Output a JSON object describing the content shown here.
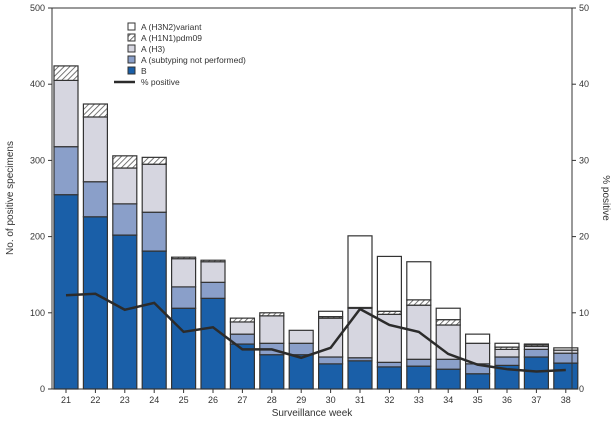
{
  "chart_data": {
    "type": "bar",
    "stacked": true,
    "xlabel": "Surveillance week",
    "ylabel": "No. of positive specimens",
    "y2label": "% positive",
    "ylim": [
      0,
      500
    ],
    "y2lim": [
      0,
      50
    ],
    "yticks": [
      0,
      100,
      200,
      300,
      400,
      500
    ],
    "y2ticks": [
      0,
      10,
      20,
      30,
      40,
      50
    ],
    "legend_position": "top-left",
    "categories": [
      "21",
      "22",
      "23",
      "24",
      "25",
      "26",
      "27",
      "28",
      "29",
      "30",
      "31",
      "32",
      "33",
      "34",
      "35",
      "36",
      "37",
      "38"
    ],
    "series": [
      {
        "name": "B",
        "color": "#1a5fa8",
        "values": [
          255,
          226,
          202,
          181,
          106,
          119,
          59,
          45,
          45,
          33,
          37,
          29,
          30,
          26,
          20,
          31,
          42,
          34
        ]
      },
      {
        "name": "A (subtyping not performed)",
        "color": "#8a9fc9",
        "values": [
          63,
          46,
          41,
          51,
          28,
          21,
          13,
          15,
          15,
          9,
          4,
          6,
          9,
          13,
          13,
          11,
          10,
          13
        ]
      },
      {
        "name": "A (H3)",
        "color": "#d6d6e0",
        "values": [
          87,
          85,
          47,
          63,
          37,
          27,
          16,
          36,
          17,
          51,
          65,
          63,
          71,
          45,
          27,
          10,
          4,
          4
        ]
      },
      {
        "name": "A (H1N1)pdm09",
        "color": "hatch",
        "values": [
          19,
          17,
          16,
          9,
          2,
          2,
          5,
          4,
          0,
          2,
          1,
          4,
          7,
          7,
          0,
          3,
          2,
          0
        ]
      },
      {
        "name": "A (H3N2)variant",
        "color": "#ffffff",
        "values": [
          0,
          0,
          0,
          0,
          0,
          0,
          0,
          0,
          0,
          7,
          94,
          72,
          50,
          15,
          12,
          5,
          1,
          3
        ]
      }
    ],
    "line": {
      "name": "% positive",
      "color": "#2b2b2b",
      "values": [
        12.3,
        12.5,
        10.4,
        11.3,
        7.5,
        8.1,
        5.2,
        5.2,
        4.1,
        5.4,
        10.5,
        8.4,
        7.5,
        4.6,
        3.2,
        2.6,
        2.3,
        2.5
      ]
    },
    "legend_order": [
      "A (H3N2)variant",
      "A (H1N1)pdm09",
      "A (H3)",
      "A (subtyping not performed)",
      "B",
      "% positive"
    ]
  }
}
